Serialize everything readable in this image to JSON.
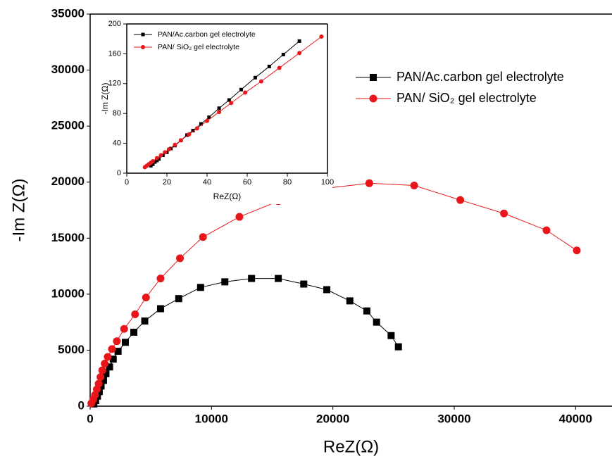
{
  "chart_data": [
    {
      "type": "line",
      "xlabel": "ReZ(Ω)",
      "ylabel": "-Im Z(Ω)",
      "xlim": [
        0,
        43000
      ],
      "ylim": [
        0,
        35000
      ],
      "xticks": [
        0,
        10000,
        20000,
        30000,
        40000
      ],
      "yticks": [
        0,
        5000,
        10000,
        15000,
        20000,
        25000,
        30000,
        35000
      ],
      "legend": "right",
      "series": [
        {
          "name": "PAN/Ac.carbon gel electrolyte",
          "color": "#000000",
          "marker": "square",
          "x": [
            300,
            450,
            600,
            750,
            900,
            1100,
            1300,
            1600,
            1900,
            2300,
            2900,
            3600,
            4500,
            5800,
            7300,
            9100,
            11100,
            13300,
            15500,
            17600,
            19500,
            21400,
            22800,
            23600,
            24800,
            25400
          ],
          "values": [
            200,
            500,
            900,
            1300,
            1800,
            2300,
            2900,
            3500,
            4200,
            4900,
            5700,
            6600,
            7600,
            8700,
            9600,
            10600,
            11100,
            11400,
            11400,
            10900,
            10400,
            9400,
            8500,
            7500,
            6300,
            5300
          ]
        },
        {
          "name": "PAN/ SiO₂ gel electrolyte",
          "color": "#e8161b",
          "marker": "circle",
          "x": [
            100,
            250,
            400,
            550,
            700,
            850,
            1000,
            1200,
            1450,
            1800,
            2200,
            2800,
            3700,
            4600,
            5800,
            7400,
            9300,
            12300,
            15500,
            19000,
            23000,
            26700,
            30500,
            34100,
            37600,
            40100
          ],
          "values": [
            250,
            600,
            1000,
            1500,
            2000,
            2600,
            3200,
            3800,
            4400,
            5100,
            5800,
            6900,
            8200,
            9700,
            11400,
            13200,
            15100,
            16900,
            18300,
            19400,
            19900,
            19700,
            18400,
            17200,
            15700,
            13900
          ]
        }
      ]
    },
    {
      "type": "line",
      "xlabel": "ReZ(Ω)",
      "ylabel": "-Im Z(Ω)",
      "xlim": [
        0,
        100
      ],
      "ylim": [
        0,
        200
      ],
      "xticks": [
        0,
        20,
        40,
        60,
        80,
        100
      ],
      "yticks": [
        0,
        40,
        80,
        120,
        160,
        200
      ],
      "legend": "upper left",
      "series": [
        {
          "name": "PAN/Ac.carbon gel electrolyte",
          "color": "#000000",
          "marker": "square",
          "x": [
            12,
            13,
            14,
            15,
            16,
            18,
            20,
            22,
            24,
            27,
            30,
            33,
            37,
            41,
            46,
            51,
            57,
            64,
            71,
            78,
            86
          ],
          "values": [
            10,
            12,
            15,
            17,
            19,
            24,
            28,
            33,
            37,
            44,
            51,
            57,
            66,
            75,
            87,
            98,
            112,
            128,
            143,
            159,
            177
          ]
        },
        {
          "name": "PAN/ SiO₂ gel electrolyte",
          "color": "#e8161b",
          "marker": "circle",
          "x": [
            9,
            10,
            11,
            12,
            13,
            15,
            17,
            19,
            21,
            24,
            27,
            31,
            35,
            40,
            46,
            52,
            59,
            67,
            76,
            86,
            97
          ],
          "values": [
            8,
            10,
            12,
            14,
            16,
            20,
            24,
            28,
            32,
            38,
            44,
            52,
            60,
            70,
            82,
            94,
            108,
            123,
            141,
            161,
            183
          ]
        }
      ]
    }
  ]
}
